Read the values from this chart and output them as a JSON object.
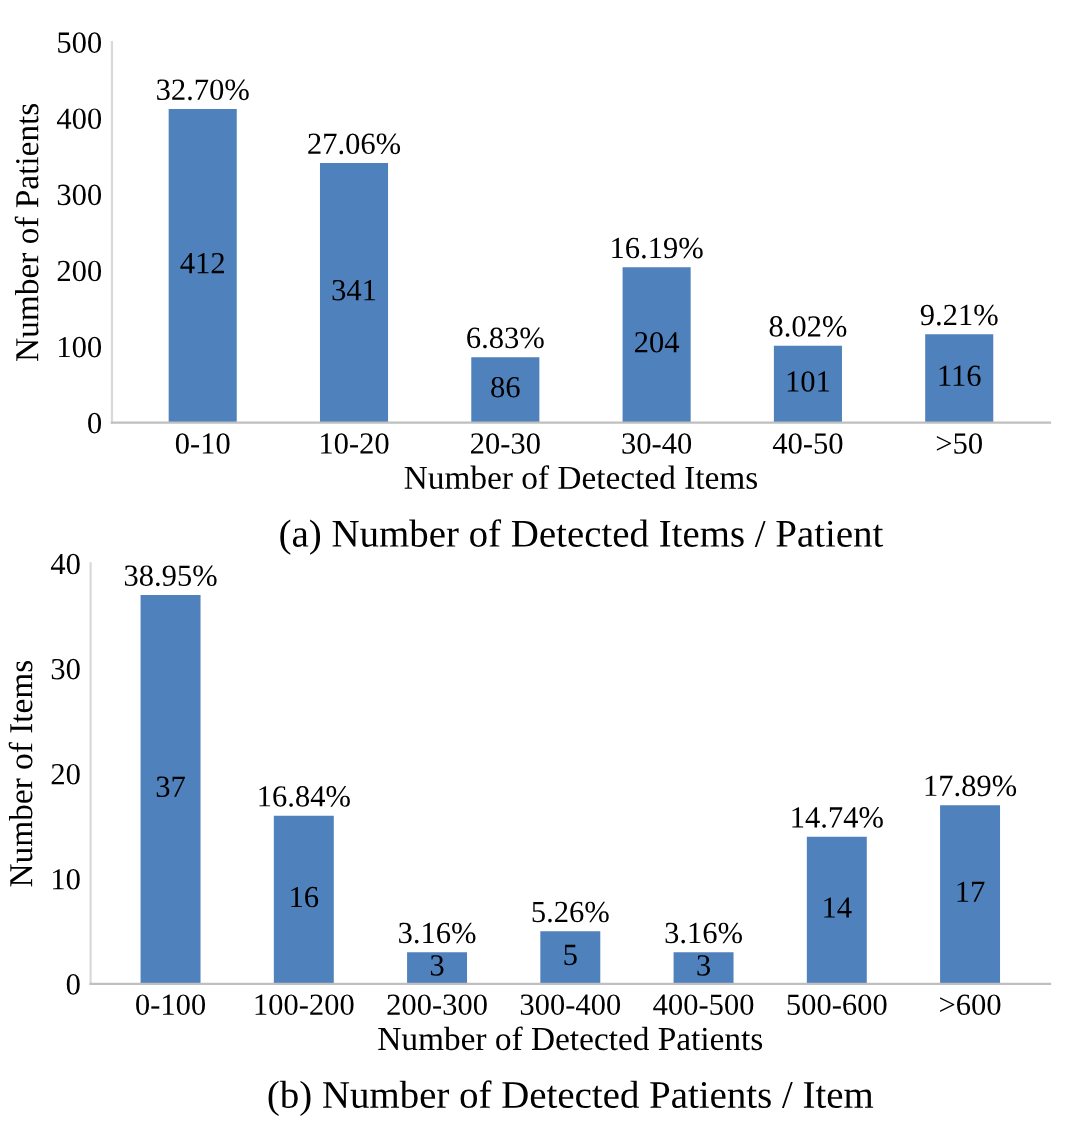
{
  "chart_data": [
    {
      "type": "bar",
      "title": "(a) Number of Detected Items / Patient",
      "xlabel": "Number of Detected Items",
      "ylabel": "Number of Patients",
      "categories": [
        "0-10",
        "10-20",
        "20-30",
        "30-40",
        "40-50",
        ">50"
      ],
      "series": [
        {
          "color": "#4f81bd",
          "values": [
            412,
            341,
            86,
            204,
            101,
            116
          ]
        }
      ],
      "data_labels": true,
      "ylim": [
        0,
        500
      ],
      "yticks": [
        0,
        100,
        200,
        300,
        400,
        500
      ],
      "grid": false,
      "legend": false,
      "annotations": [
        {
          "text": "32.70%",
          "x": "0-10",
          "y": 412
        },
        {
          "text": "27.06%",
          "x": "10-20",
          "y": 341
        },
        {
          "text": "6.83%",
          "x": "20-30",
          "y": 86
        },
        {
          "text": "16.19%",
          "x": "30-40",
          "y": 204
        },
        {
          "text": "8.02%",
          "x": "40-50",
          "y": 101
        },
        {
          "text": "9.21%",
          "x": ">50",
          "y": 116
        }
      ]
    },
    {
      "type": "bar",
      "title": "(b) Number of Detected Patients / Item",
      "xlabel": "Number of Detected Patients",
      "ylabel": "Number of Items",
      "categories": [
        "0-100",
        "100-200",
        "200-300",
        "300-400",
        "400-500",
        "500-600",
        ">600"
      ],
      "series": [
        {
          "color": "#4f81bd",
          "values": [
            37,
            16,
            3,
            5,
            3,
            14,
            17
          ]
        }
      ],
      "data_labels": true,
      "ylim": [
        0,
        40
      ],
      "yticks": [
        0,
        10,
        20,
        30,
        40
      ],
      "grid": false,
      "legend": false,
      "annotations": [
        {
          "text": "38.95%",
          "x": "0-100",
          "y": 37
        },
        {
          "text": "16.84%",
          "x": "100-200",
          "y": 16
        },
        {
          "text": "3.16%",
          "x": "200-300",
          "y": 3
        },
        {
          "text": "5.26%",
          "x": "300-400",
          "y": 5
        },
        {
          "text": "3.16%",
          "x": "400-500",
          "y": 3
        },
        {
          "text": "14.74%",
          "x": "500-600",
          "y": 14
        },
        {
          "text": "17.89%",
          "x": ">600",
          "y": 17
        }
      ]
    }
  ]
}
